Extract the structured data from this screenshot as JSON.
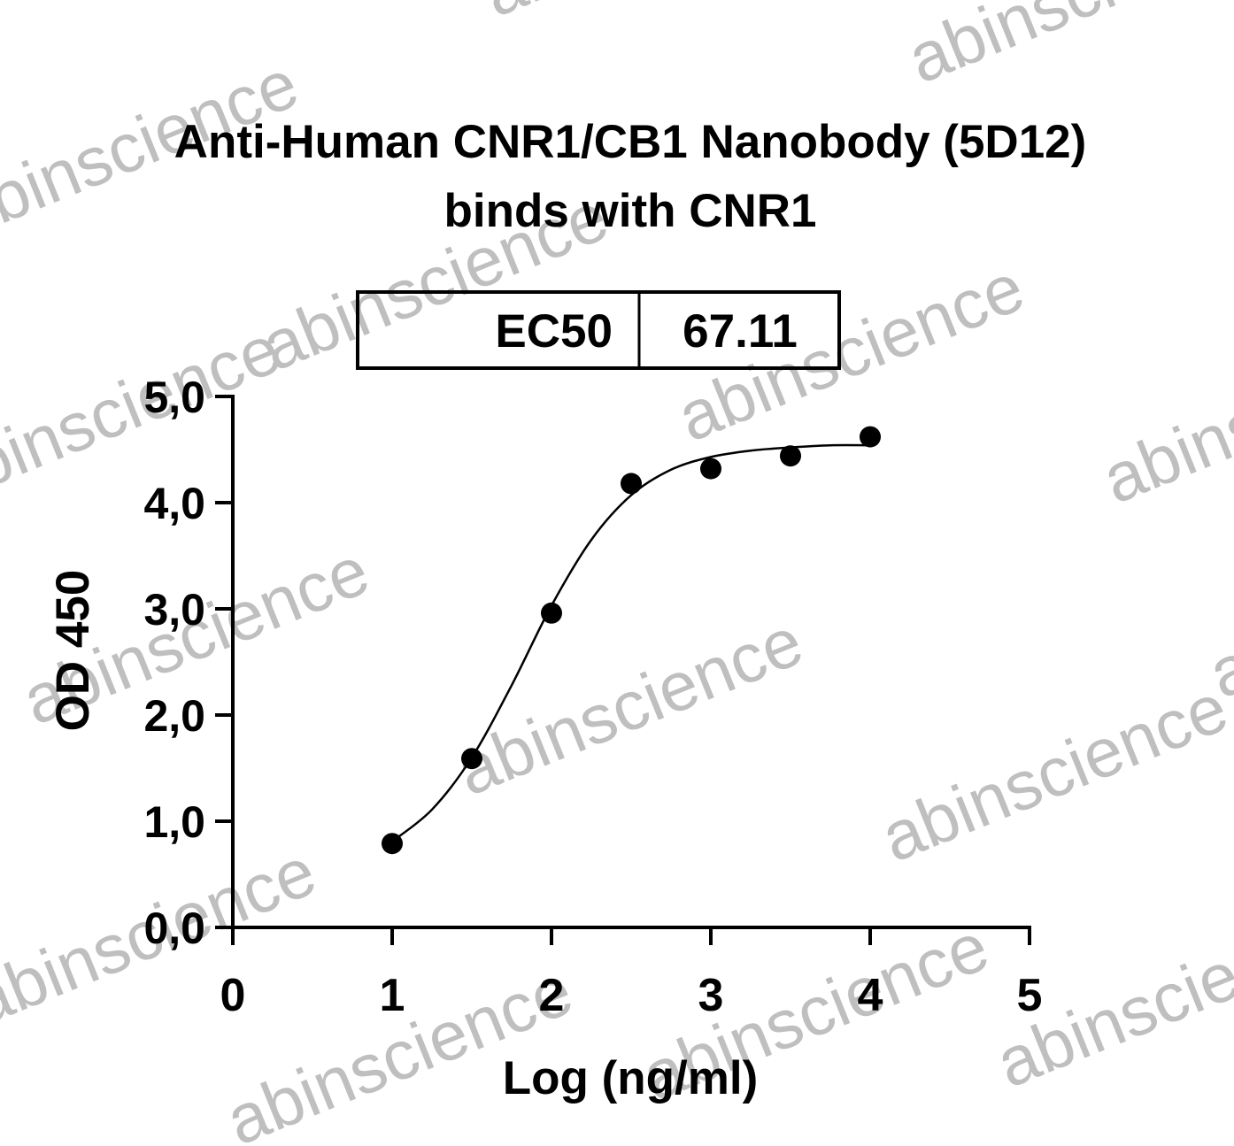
{
  "chart_data": {
    "type": "scatter",
    "title": [
      "Anti-Human CNR1/CB1 Nanobody (5D12)",
      "binds with CNR1"
    ],
    "watermark": "abinscience",
    "x_label": "Log (ng/ml)",
    "y_label": "OD 450",
    "stats_table": {
      "header": "EC50",
      "value": "67.11"
    },
    "series": [
      {
        "name": "data",
        "color": "#000000",
        "x": [
          1,
          1.5,
          2,
          2.5,
          3,
          3.5,
          4
        ],
        "values": [
          0.79,
          1.59,
          2.96,
          4.18,
          4.32,
          4.44,
          4.62
        ]
      },
      {
        "name": "fit",
        "color": "#000000",
        "x": [
          1,
          1.25,
          1.5,
          1.75,
          2,
          2.25,
          2.5,
          2.75,
          3,
          3.25,
          3.5,
          3.75,
          4
        ],
        "values": [
          0.81,
          1.11,
          1.6,
          2.28,
          3.03,
          3.65,
          4.07,
          4.31,
          4.43,
          4.49,
          4.52,
          4.54,
          4.54
        ]
      }
    ],
    "xlim": [
      0,
      5
    ],
    "xticks": [
      0,
      1,
      2,
      3,
      4,
      5
    ],
    "ylim": [
      0,
      5
    ],
    "yticks": [
      {
        "value": 0,
        "label": "0,0"
      },
      {
        "value": 1,
        "label": "1,0"
      },
      {
        "value": 2,
        "label": "2,0"
      },
      {
        "value": 3,
        "label": "3,0"
      },
      {
        "value": 4,
        "label": "4,0"
      },
      {
        "value": 5,
        "label": "5,0"
      }
    ]
  }
}
